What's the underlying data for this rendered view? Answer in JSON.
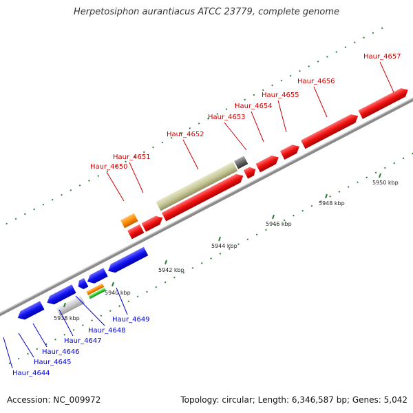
{
  "title": "Herpetosiphon aurantiacus ATCC 23779, complete genome",
  "accession": "Accession: NC_009972",
  "summary": "Topology: circular; Length: 6,346,587 bp; Genes: 5,042",
  "colors": {
    "forward_label": "#cc0000",
    "reverse_label": "#0000cc",
    "cds_forward": "#ff1a1a",
    "cds_reverse": "#1a1aff",
    "rrna": "#ff8c00",
    "trna": "#33cc33",
    "pseudogene": "#c8c89a",
    "misc": "#666666",
    "backbone": "#8a8a8a",
    "ticks": "#2e7d32"
  },
  "scale_ticks": [
    "5938 kbp",
    "5940 kbp",
    "5942 kbp",
    "5944 kbp",
    "5946 kbp",
    "5948 kbp",
    "5950 kbp"
  ],
  "forward_labels": [
    "Haur_4650",
    "Haur_4651",
    "Haur_4652",
    "Haur_4653",
    "Haur_4654",
    "Haur_4655",
    "Haur_4656",
    "Haur_4657"
  ],
  "reverse_labels": [
    "Haur_4644",
    "Haur_4645",
    "Haur_4646",
    "Haur_4647",
    "Haur_4648",
    "Haur_4649"
  ]
}
